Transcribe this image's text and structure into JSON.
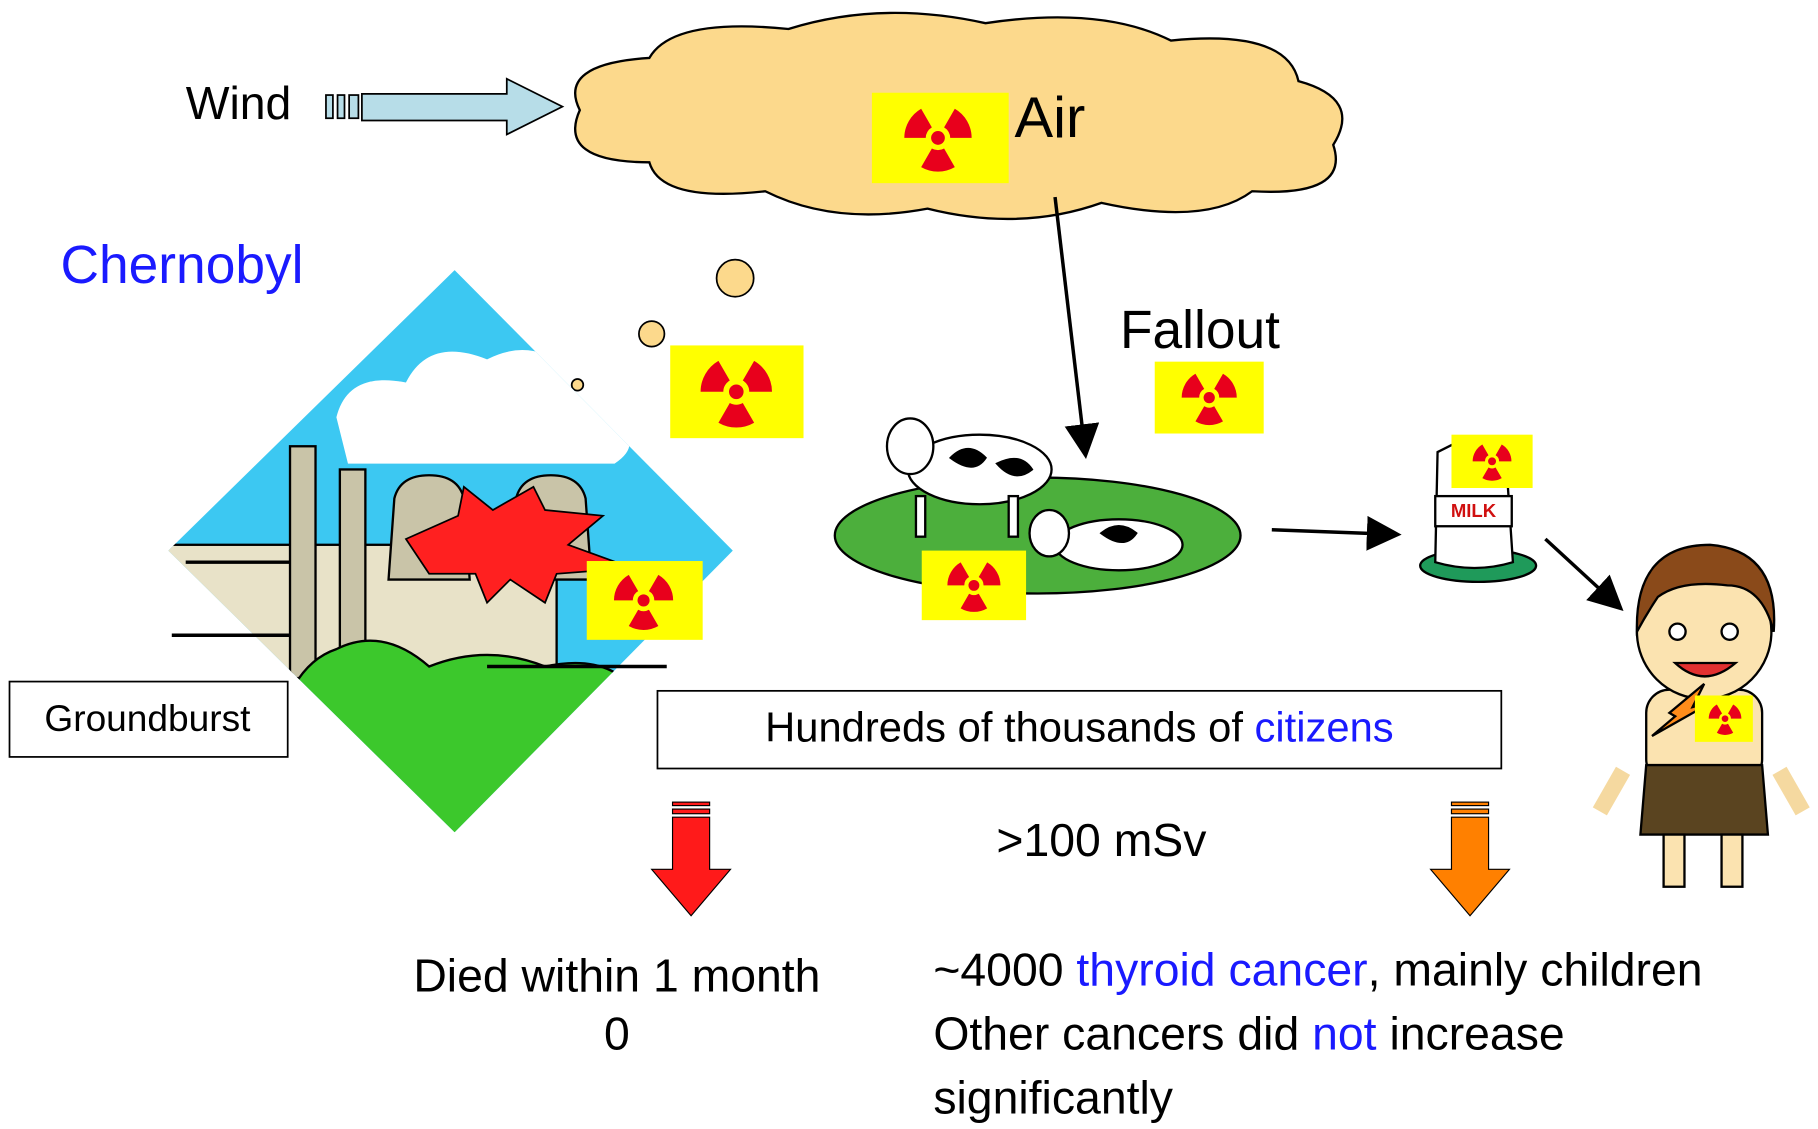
{
  "wind": "Wind",
  "air": "Air",
  "chernobyl": "Chernobyl",
  "fallout": "Fallout",
  "groundburst": "Groundburst",
  "milk_label": "MILK",
  "citizens_box": {
    "parts": [
      "Hundreds of thousands of ",
      "citizens"
    ]
  },
  "dose": ">100 mSv",
  "left_outcome": {
    "line1": "Died within 1 month",
    "line2": "0"
  },
  "right_outcome": {
    "line1": [
      "~4000 ",
      "thyroid cancer",
      ", mainly children"
    ],
    "line2": [
      "Other cancers did ",
      "not",
      " increase"
    ],
    "line3": "significantly"
  }
}
